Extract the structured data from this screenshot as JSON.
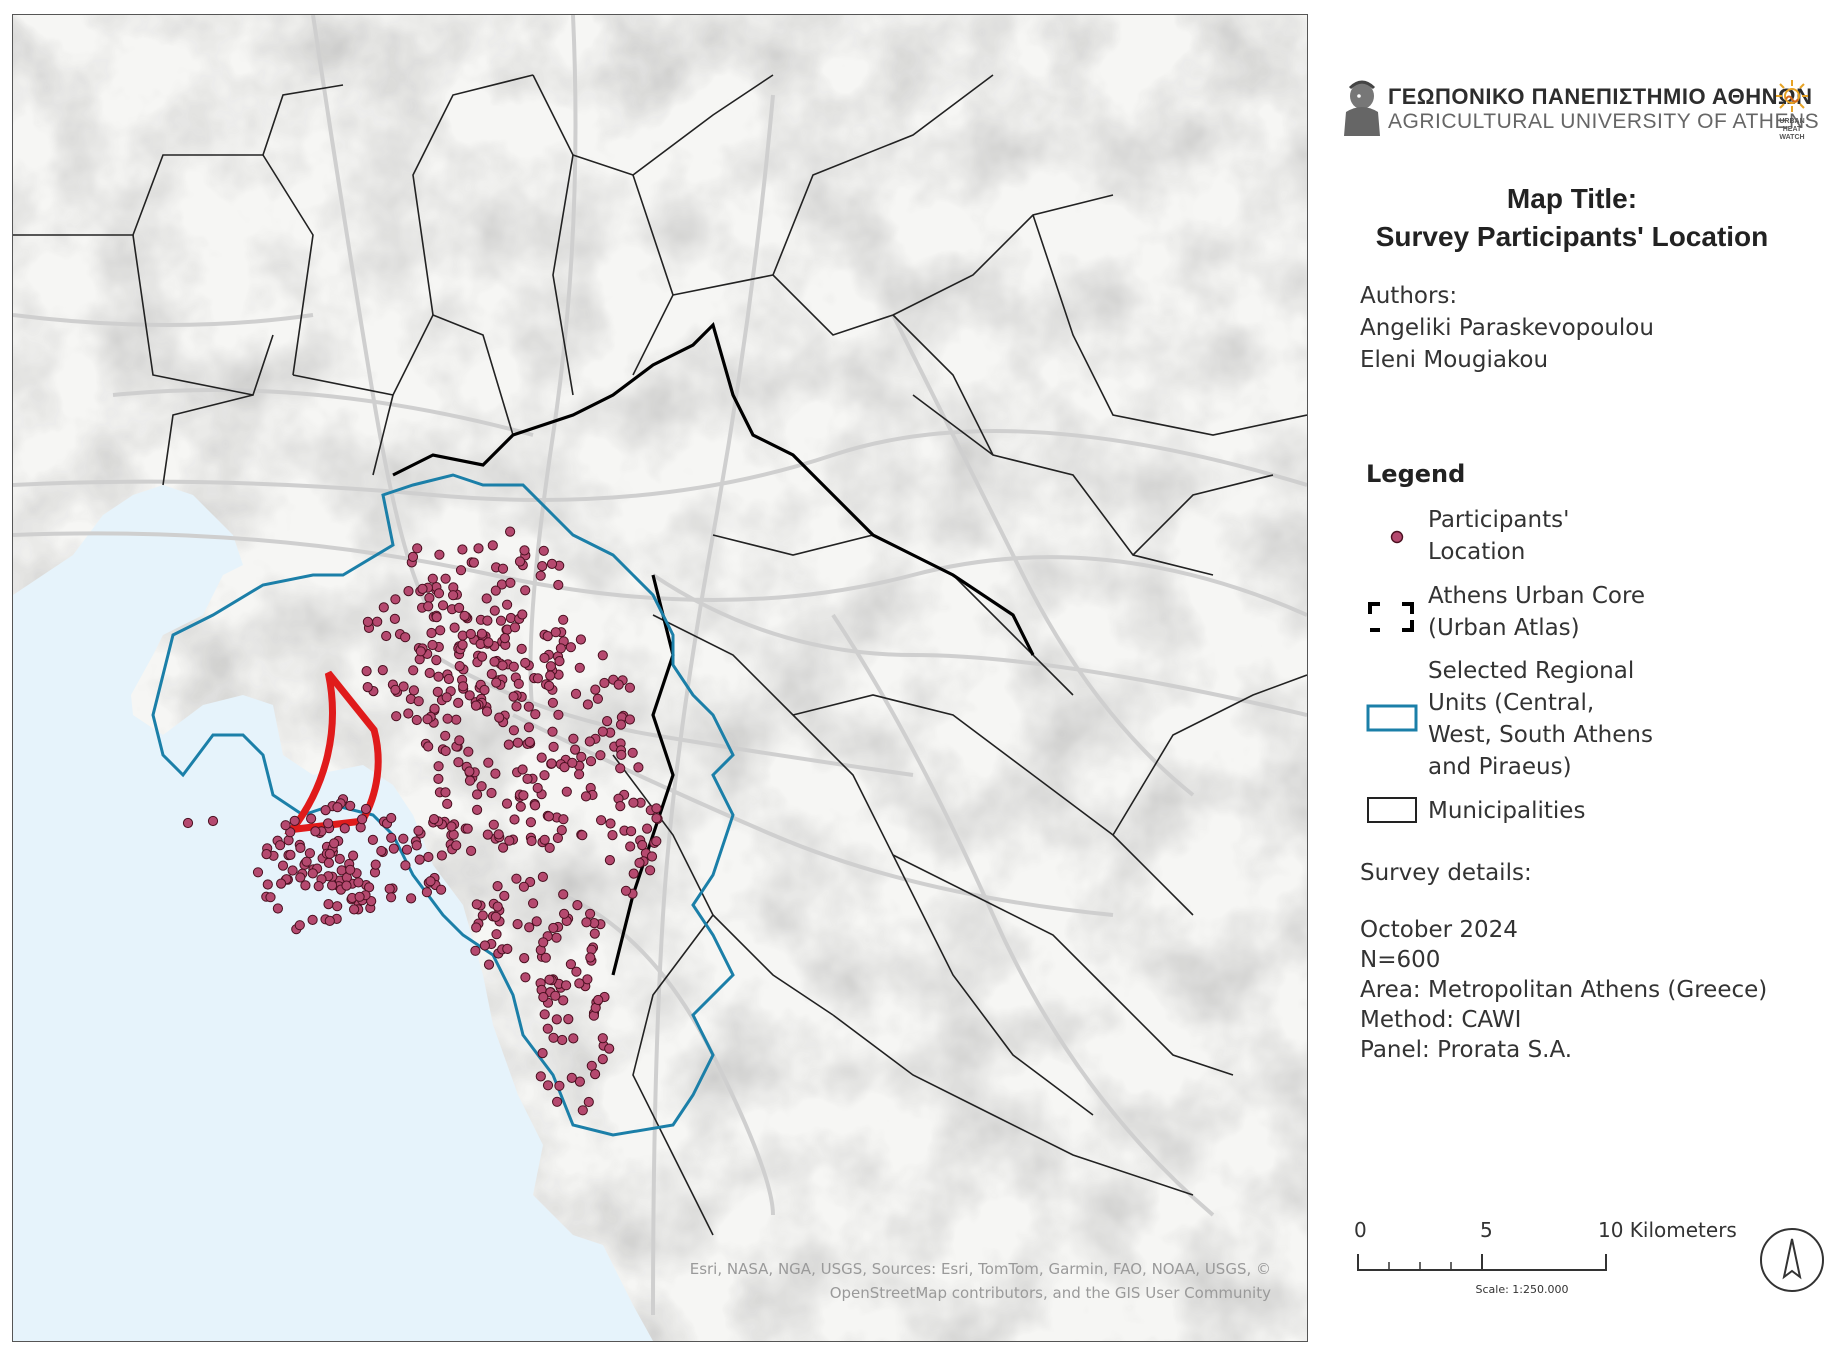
{
  "map": {
    "attribution_line1": "Esri, NASA, NGA, USGS, Sources: Esri, TomTom, Garmin, FAO, NOAA, USGS, ©",
    "attribution_line2": "OpenStreetMap contributors, and the GIS User Community",
    "colors": {
      "water": "#e6f3fb",
      "land": "#f6f6f4",
      "participant_fill": "#b5496f",
      "participant_stroke": "#4a1020",
      "urban_core": "#000000",
      "regional_units": "#1b7fa8",
      "municipalities": "#222222",
      "highlight_ring": "#e01b1b"
    }
  },
  "header": {
    "university_greek": "ΓΕΩΠΟΝΙΚΟ ΠΑΝΕΠΙΣΤΗΜΙΟ ΑΘΗΝΩΝ",
    "university_english": "AGRICULTURAL UNIVERSITY OF ATHENS",
    "partner_logo_line1": "URBAN",
    "partner_logo_line2": "HEAT",
    "partner_logo_line3": "WATCH"
  },
  "title": {
    "line1": "Map Title:",
    "line2": "Survey Participants' Location"
  },
  "authors": {
    "heading": "Authors:",
    "names": [
      "Angeliki Paraskevopoulou",
      "Eleni Mougiakou"
    ]
  },
  "legend": {
    "title": "Legend",
    "items": [
      {
        "symbol": "dot",
        "label_lines": [
          "Participants'",
          "Location"
        ]
      },
      {
        "symbol": "dashed-box",
        "label_lines": [
          "Athens Urban Core",
          "(Urban Atlas)"
        ]
      },
      {
        "symbol": "blue-box",
        "label_lines": [
          "Selected Regional",
          "Units (Central,",
          "West, South Athens",
          "and Piraeus)"
        ]
      },
      {
        "symbol": "black-box",
        "label_lines": [
          "Municipalities"
        ]
      }
    ]
  },
  "survey": {
    "heading": "Survey details:",
    "lines": [
      "October 2024",
      "N=600",
      "Area: Metropolitan Athens (Greece)",
      "Method: CAWI",
      "Panel: Prorata S.A."
    ]
  },
  "scalebar": {
    "ticks": [
      "0",
      "5",
      "10 Kilometers"
    ],
    "caption": "Scale: 1:250.000",
    "north_icon": "north-arrow-icon"
  }
}
